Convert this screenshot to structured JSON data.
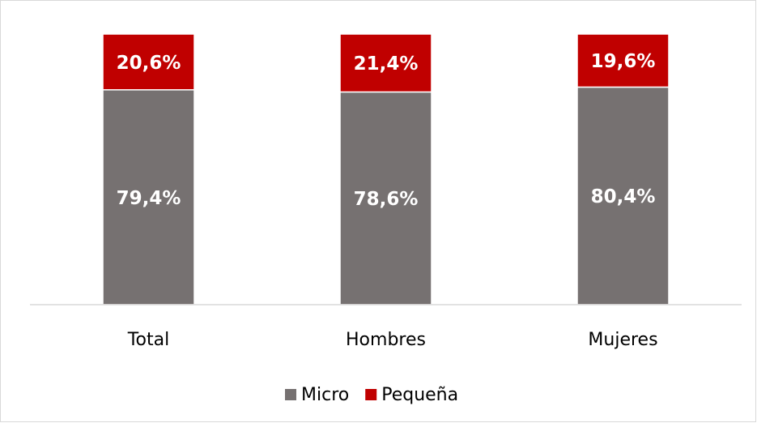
{
  "chart_data": {
    "type": "stacked_bar",
    "categories": [
      "Total",
      "Hombres",
      "Mujeres"
    ],
    "series": [
      {
        "name": "Micro",
        "color": "#767171",
        "values": [
          79.4,
          78.6,
          80.4
        ],
        "value_labels": [
          "79,4%",
          "78,6%",
          "80,4%"
        ]
      },
      {
        "name": "Pequeña",
        "color": "#c00000",
        "values": [
          20.6,
          21.4,
          19.6
        ],
        "value_labels": [
          "20,6%",
          "21,4%",
          "19,6%"
        ]
      }
    ],
    "ylim": [
      0,
      100
    ],
    "legend": "bottom"
  }
}
